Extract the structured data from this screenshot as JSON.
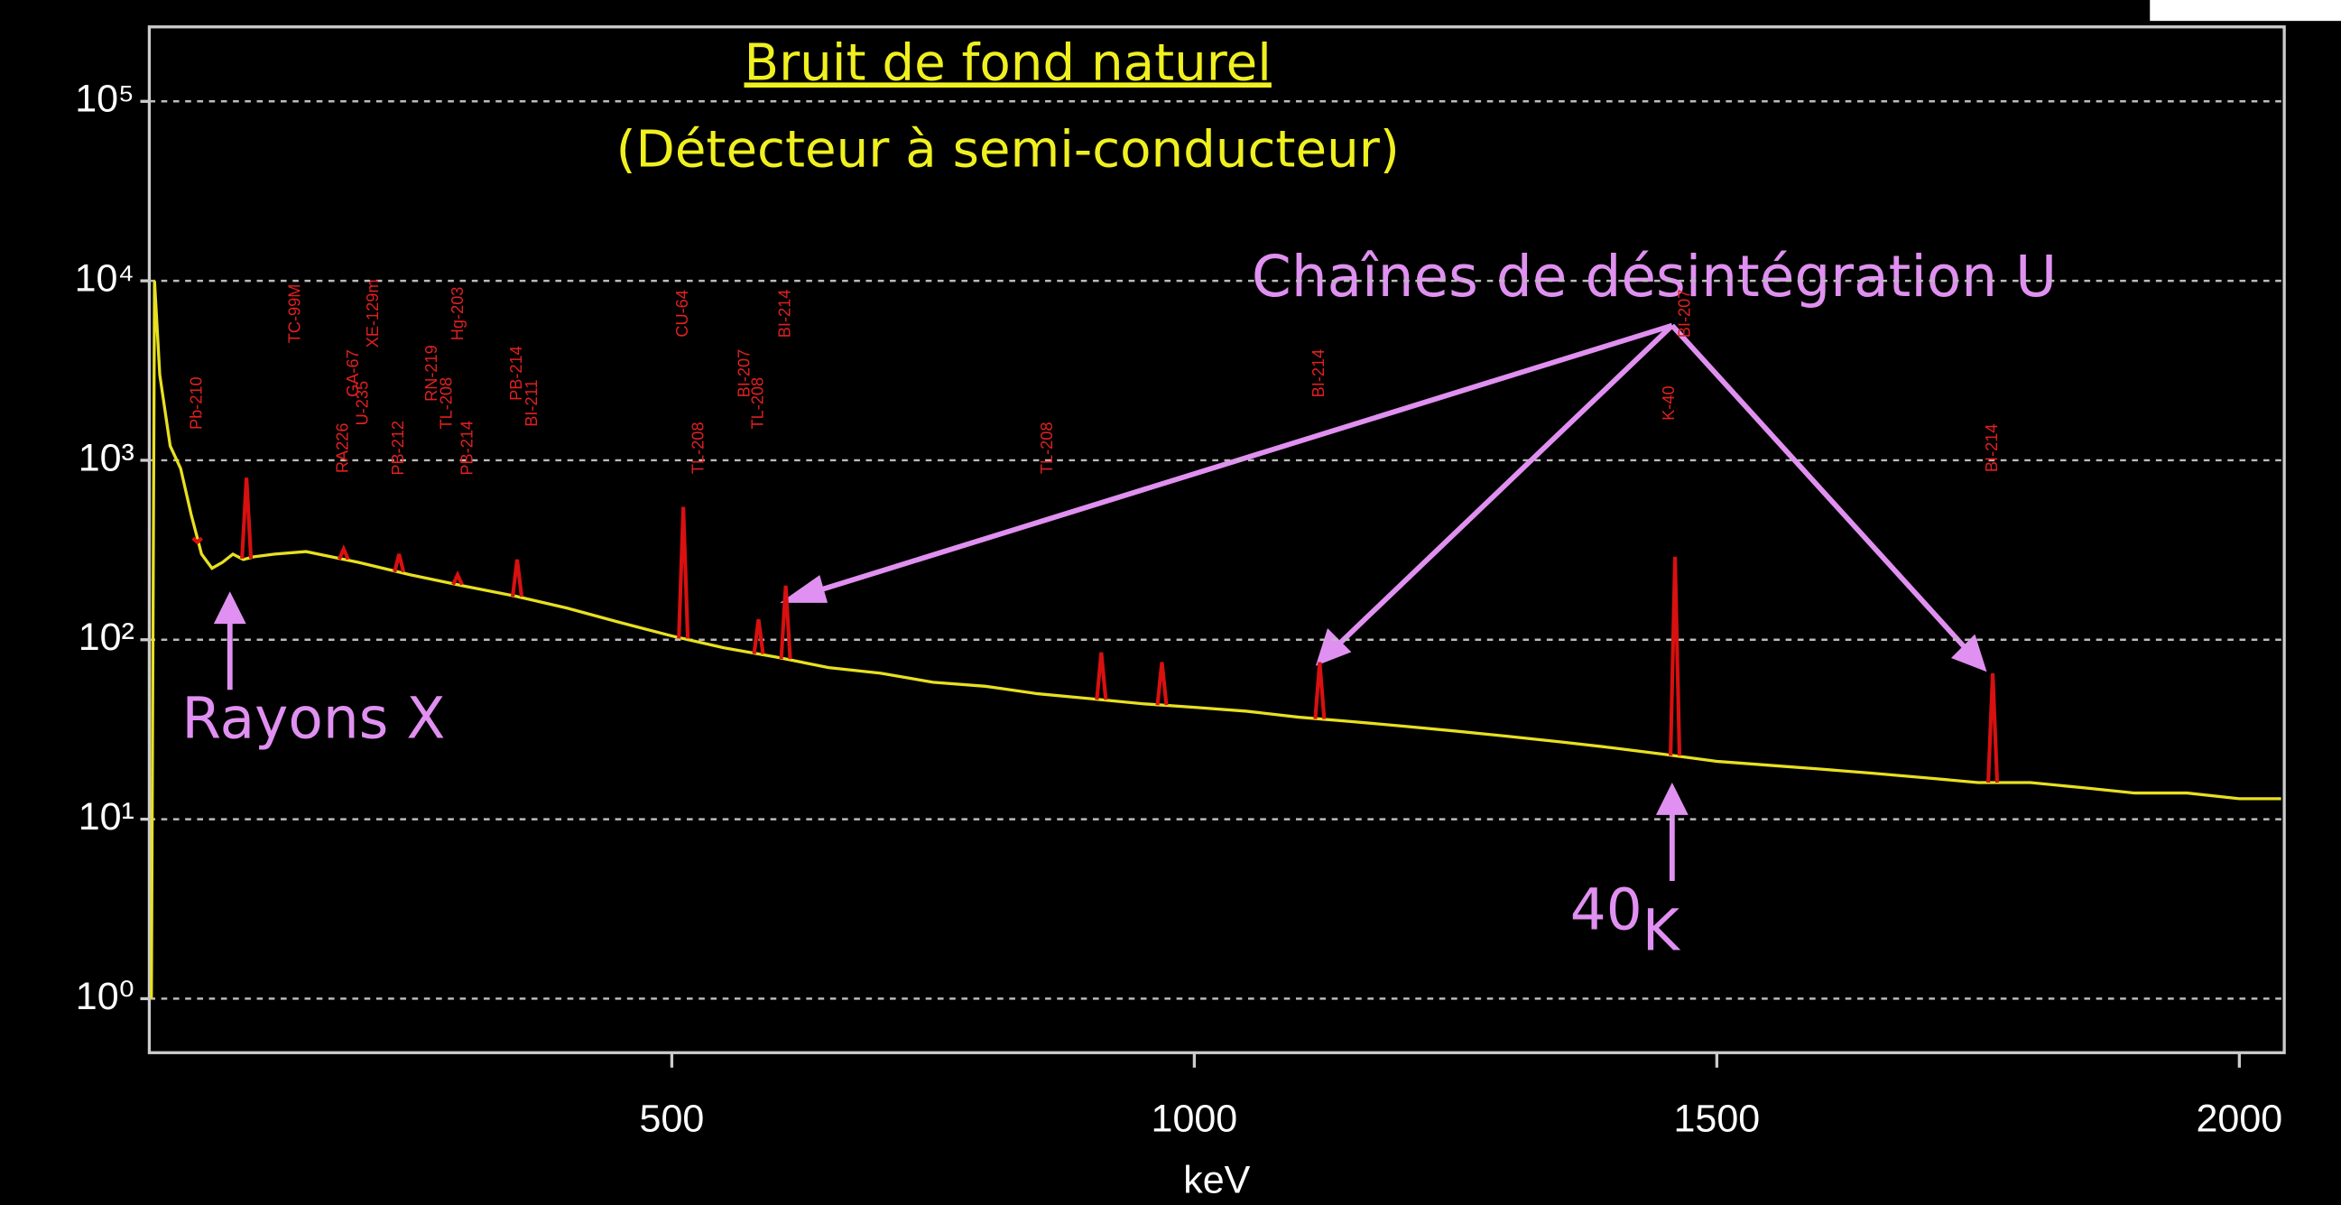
{
  "chart_data": {
    "type": "line",
    "title": "Bruit de fond naturel",
    "subtitle": "(Détecteur à semi-conducteur)",
    "x_label": "keV",
    "log_y": true,
    "grid": true,
    "xlim": [
      0,
      2043
    ],
    "xticks": [
      500,
      1000,
      1500,
      2000
    ],
    "ylim": [
      0.5,
      260000
    ],
    "yticks": [
      {
        "value": 1,
        "label": "10⁰"
      },
      {
        "value": 10,
        "label": "10¹"
      },
      {
        "value": 100,
        "label": "10²"
      },
      {
        "value": 1000,
        "label": "10³"
      },
      {
        "value": 10000,
        "label": "10⁴"
      },
      {
        "value": 100000,
        "label": "10⁵"
      }
    ],
    "x": [
      2,
      5,
      10,
      20,
      30,
      40,
      50,
      60,
      70,
      80,
      90,
      100,
      120,
      150,
      200,
      250,
      300,
      350,
      400,
      450,
      500,
      550,
      600,
      650,
      700,
      750,
      800,
      850,
      900,
      950,
      1000,
      1050,
      1100,
      1150,
      1200,
      1250,
      1300,
      1350,
      1400,
      1450,
      1500,
      1550,
      1600,
      1650,
      1700,
      1750,
      1800,
      1850,
      1900,
      1950,
      2000,
      2040
    ],
    "values": [
      1,
      10000,
      3000,
      1200,
      900,
      500,
      300,
      250,
      270,
      300,
      280,
      290,
      300,
      310,
      270,
      230,
      200,
      175,
      150,
      125,
      105,
      90,
      80,
      70,
      65,
      58,
      55,
      50,
      47,
      44,
      42,
      40,
      37,
      35,
      33,
      31,
      29,
      27,
      25,
      23,
      21,
      20,
      19,
      18,
      17,
      16,
      16,
      15,
      14,
      14,
      13,
      13
    ],
    "color": "#e8e020",
    "peaks": {
      "x": [
        46,
        93,
        186,
        239,
        295,
        352,
        511,
        583,
        609,
        911,
        969,
        1120,
        1460,
        1764
      ],
      "values": [
        350,
        800,
        320,
        300,
        230,
        280,
        550,
        130,
        200,
        85,
        75,
        75,
        290,
        65
      ],
      "color": "#d81010"
    },
    "isotope_labels": [
      {
        "label": "Pb-210",
        "x": 46
      },
      {
        "label": "TC-99M",
        "x": 140
      },
      {
        "label": "RA226",
        "x": 186
      },
      {
        "label": "GA-67",
        "x": 196
      },
      {
        "label": "U-235",
        "x": 205
      },
      {
        "label": "XE-129m",
        "x": 215
      },
      {
        "label": "PB-212",
        "x": 239
      },
      {
        "label": "RN-219",
        "x": 271
      },
      {
        "label": "TL-208",
        "x": 285
      },
      {
        "label": "Hg-203",
        "x": 296
      },
      {
        "label": "PB-214",
        "x": 305
      },
      {
        "label": "PB-214",
        "x": 352
      },
      {
        "label": "BI-211",
        "x": 367
      },
      {
        "label": "CU-64",
        "x": 511
      },
      {
        "label": "TL-208",
        "x": 526
      },
      {
        "label": "BI-207",
        "x": 570
      },
      {
        "label": "TL-208",
        "x": 583
      },
      {
        "label": "BI-214",
        "x": 609
      },
      {
        "label": "TL-208",
        "x": 860
      },
      {
        "label": "BI-214",
        "x": 1120
      },
      {
        "label": "K-40",
        "x": 1455
      },
      {
        "label": "BI-207",
        "x": 1470
      },
      {
        "label": "BI-214",
        "x": 1764
      }
    ],
    "annotations": {
      "xrays": "Rayons X",
      "uchain": "Chaînes de désintégration U",
      "k40_mass": "40",
      "k40_symbol": "K"
    }
  }
}
